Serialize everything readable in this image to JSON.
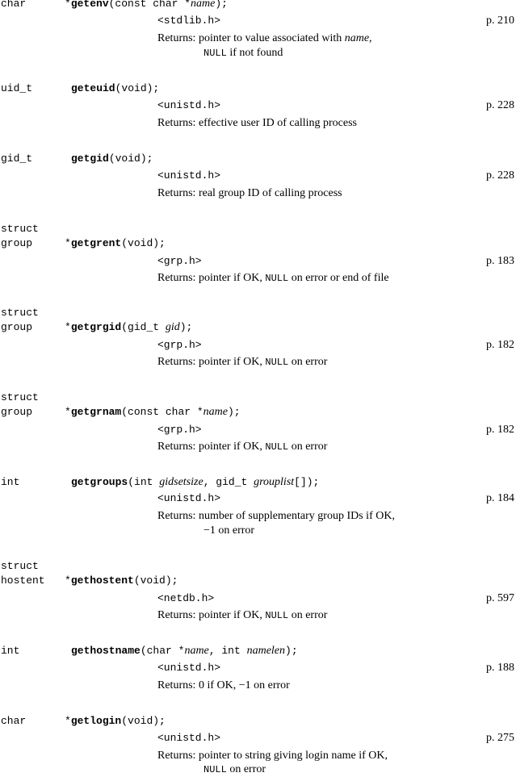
{
  "entries": [
    {
      "rtype": "char",
      "ptr": "*",
      "fname": "getenv",
      "p1": "(const char *",
      "a1": "name",
      "p2": ");",
      "header": "<stdlib.h>",
      "page": "p. 210",
      "ret_prefix": "Returns: pointer to value associated with ",
      "ret_arg": "name,",
      "ret2_code": "NULL",
      "ret2_text": " if not found"
    },
    {
      "rtype": "uid_t",
      "fname": "geteuid",
      "p1": "(void);",
      "header": "<unistd.h>",
      "page": "p. 228",
      "ret": "Returns: effective user ID of calling process"
    },
    {
      "rtype": "gid_t",
      "fname": "getgid",
      "p1": "(void);",
      "header": "<unistd.h>",
      "page": "p. 228",
      "ret": "Returns: real group ID of calling process"
    },
    {
      "rtype1": "struct",
      "rtype2": "group",
      "ptr": "*",
      "fname": "getgrent",
      "p1": "(void);",
      "header": "<grp.h>",
      "page": "p. 183",
      "ret_a": "Returns: pointer if OK, ",
      "ret_code": "NULL",
      "ret_b": " on error or end of file"
    },
    {
      "rtype1": "struct",
      "rtype2": "group",
      "ptr": "*",
      "fname": "getgrgid",
      "p1": "(gid_t ",
      "a1": "gid",
      "p2": ");",
      "header": "<grp.h>",
      "page": "p. 182",
      "ret_a": "Returns: pointer if OK, ",
      "ret_code": "NULL",
      "ret_b": " on error"
    },
    {
      "rtype1": "struct",
      "rtype2": "group",
      "ptr": "*",
      "fname": "getgrnam",
      "p1": "(const char *",
      "a1": "name",
      "p2": ");",
      "header": "<grp.h>",
      "page": "p. 182",
      "ret_a": "Returns: pointer if OK, ",
      "ret_code": "NULL",
      "ret_b": " on error"
    },
    {
      "rtype": "int",
      "fname": "getgroups",
      "p1": "(int ",
      "a1": "gidsetsize",
      "p2": ", gid_t ",
      "a2": "grouplist",
      "p3": "[]);",
      "header": "<unistd.h>",
      "page": "p. 184",
      "ret": "Returns: number of supplementary group IDs if OK,",
      "ret2": "−1 on error"
    },
    {
      "rtype1": "struct",
      "rtype2": "hostent",
      "ptr": "*",
      "fname": "gethostent",
      "p1": "(void);",
      "header": "<netdb.h>",
      "page": "p. 597",
      "ret_a": "Returns: pointer if OK, ",
      "ret_code": "NULL",
      "ret_b": " on error"
    },
    {
      "rtype": "int",
      "fname": "gethostname",
      "p1": "(char *",
      "a1": "name",
      "p2": ", int ",
      "a2": "namelen",
      "p3": ");",
      "header": "<unistd.h>",
      "page": "p. 188",
      "ret": "Returns: 0 if OK, −1 on error"
    },
    {
      "rtype": "char",
      "ptr": "*",
      "fname": "getlogin",
      "p1": "(void);",
      "header": "<unistd.h>",
      "page": "p. 275",
      "ret": "Returns: pointer to string giving login name if OK,",
      "ret2_code": "NULL",
      "ret2_text": " on error"
    }
  ]
}
